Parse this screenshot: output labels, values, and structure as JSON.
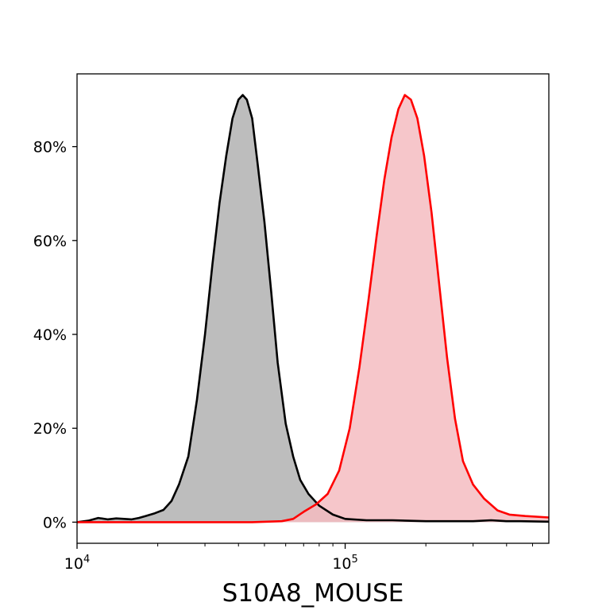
{
  "chart_data": {
    "type": "area",
    "title": "",
    "xlabel": "S10A8_MOUSE",
    "ylabel": "",
    "x_scale": "log",
    "xlim": [
      10000,
      575000
    ],
    "ylim": [
      -0.045,
      0.955
    ],
    "x_ticks": [
      {
        "value": 10000,
        "base": "10",
        "exp": "4"
      },
      {
        "value": 100000,
        "base": "10",
        "exp": "5"
      }
    ],
    "y_ticks": [
      {
        "value": 0.0,
        "label": "0%"
      },
      {
        "value": 0.2,
        "label": "20%"
      },
      {
        "value": 0.4,
        "label": "40%"
      },
      {
        "value": 0.6,
        "label": "60%"
      },
      {
        "value": 0.8,
        "label": "80%"
      }
    ],
    "grid": false,
    "legend": "none",
    "series": [
      {
        "color": "#000000",
        "fill": "#b2b2b2",
        "points": [
          [
            10000,
            0.0
          ],
          [
            11000,
            0.003
          ],
          [
            12000,
            0.009
          ],
          [
            13000,
            0.006
          ],
          [
            14000,
            0.008
          ],
          [
            15000,
            0.007
          ],
          [
            16000,
            0.006
          ],
          [
            17000,
            0.009
          ],
          [
            18000,
            0.013
          ],
          [
            19500,
            0.019
          ],
          [
            21000,
            0.026
          ],
          [
            22500,
            0.045
          ],
          [
            24000,
            0.08
          ],
          [
            26000,
            0.14
          ],
          [
            28000,
            0.26
          ],
          [
            30000,
            0.4
          ],
          [
            32000,
            0.55
          ],
          [
            34000,
            0.68
          ],
          [
            36000,
            0.78
          ],
          [
            38000,
            0.86
          ],
          [
            40000,
            0.9
          ],
          [
            41500,
            0.91
          ],
          [
            43000,
            0.9
          ],
          [
            45000,
            0.86
          ],
          [
            47000,
            0.77
          ],
          [
            50000,
            0.64
          ],
          [
            53000,
            0.49
          ],
          [
            56000,
            0.34
          ],
          [
            60000,
            0.21
          ],
          [
            64000,
            0.14
          ],
          [
            68000,
            0.09
          ],
          [
            73000,
            0.06
          ],
          [
            80000,
            0.035
          ],
          [
            90000,
            0.016
          ],
          [
            100000,
            0.007
          ],
          [
            120000,
            0.004
          ],
          [
            150000,
            0.004
          ],
          [
            200000,
            0.002
          ],
          [
            250000,
            0.002
          ],
          [
            300000,
            0.002
          ],
          [
            350000,
            0.004
          ],
          [
            400000,
            0.002
          ],
          [
            450000,
            0.002
          ],
          [
            575000,
            0.001
          ]
        ]
      },
      {
        "color": "#ff0000",
        "fill": "#f5bcc1",
        "points": [
          [
            10000,
            0.0
          ],
          [
            30000,
            0.0
          ],
          [
            45000,
            0.0
          ],
          [
            58000,
            0.002
          ],
          [
            64000,
            0.007
          ],
          [
            70000,
            0.022
          ],
          [
            78000,
            0.038
          ],
          [
            86000,
            0.06
          ],
          [
            95000,
            0.11
          ],
          [
            104000,
            0.2
          ],
          [
            113000,
            0.33
          ],
          [
            122000,
            0.47
          ],
          [
            131000,
            0.61
          ],
          [
            140000,
            0.73
          ],
          [
            149000,
            0.82
          ],
          [
            158000,
            0.88
          ],
          [
            167000,
            0.91
          ],
          [
            176000,
            0.9
          ],
          [
            186000,
            0.86
          ],
          [
            197000,
            0.78
          ],
          [
            210000,
            0.66
          ],
          [
            225000,
            0.5
          ],
          [
            240000,
            0.35
          ],
          [
            257000,
            0.22
          ],
          [
            275000,
            0.13
          ],
          [
            300000,
            0.08
          ],
          [
            330000,
            0.05
          ],
          [
            370000,
            0.025
          ],
          [
            410000,
            0.016
          ],
          [
            470000,
            0.013
          ],
          [
            575000,
            0.01
          ]
        ]
      }
    ]
  }
}
